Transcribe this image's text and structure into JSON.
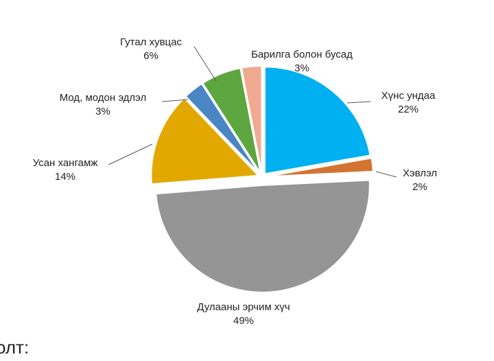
{
  "chart_data": {
    "type": "pie",
    "categories": [
      "Хүнс ундаа",
      "Хэвлэл",
      "Дулааны эрчим хүч",
      "Усан хангамж",
      "Мод, модон эдлэл",
      "Гутал хувцас",
      "Барилга болон бусад"
    ],
    "values": [
      22,
      2,
      49,
      14,
      3,
      6,
      3
    ],
    "value_labels": [
      "22%",
      "2%",
      "49%",
      "14%",
      "3%",
      "6%",
      "3%"
    ],
    "colors": [
      "#00b0f0",
      "#d2742f",
      "#959595",
      "#e2a800",
      "#4a86c4",
      "#5ea63f",
      "#f0aa92"
    ]
  },
  "footer_text": "олт:"
}
